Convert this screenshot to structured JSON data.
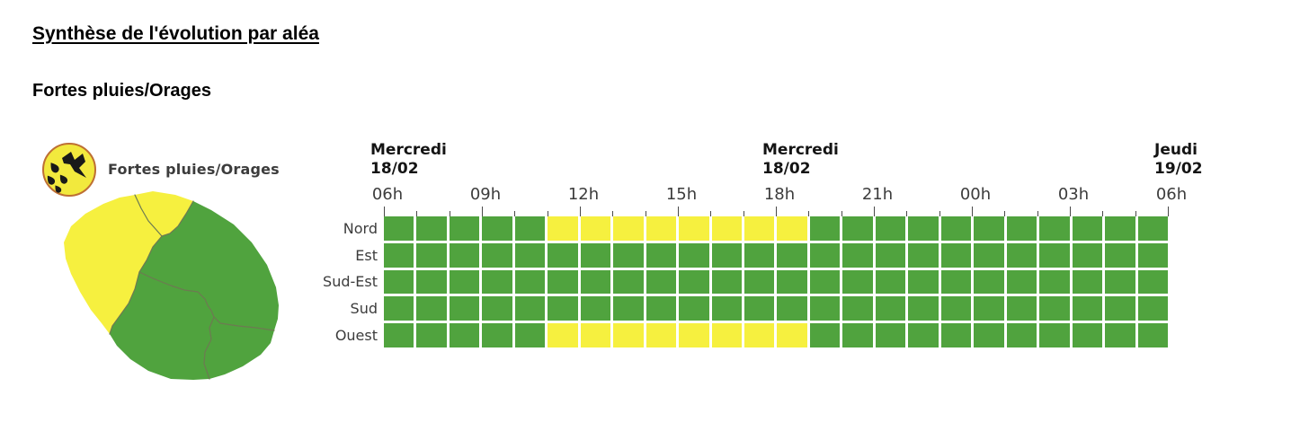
{
  "header": {
    "title": "Synthèse de l'évolution par aléa",
    "subtitle": "Fortes pluies/Orages"
  },
  "hazard": {
    "label": "Fortes pluies/Orages",
    "icon": "storm-icon",
    "icon_colors": {
      "fill": "#F2E93D",
      "outline": "#BE6F33",
      "glyph": "#191919"
    },
    "level_colors": {
      "g": "#50A33E",
      "y": "#F6F03F"
    }
  },
  "map": {
    "zones": [
      {
        "id": "Nord",
        "state": "y"
      },
      {
        "id": "Ouest",
        "state": "y"
      },
      {
        "id": "Est",
        "state": "g"
      },
      {
        "id": "Sud-Est",
        "state": "g"
      },
      {
        "id": "Sud",
        "state": "g"
      }
    ],
    "border_color": "#6d7a52"
  },
  "chart_data": {
    "type": "heatmap",
    "title": "Fortes pluies/Orages",
    "date_headers": [
      {
        "line1": "Mercredi",
        "line2": "18/02",
        "anchor_hour_index": 0
      },
      {
        "line1": "Mercredi",
        "line2": "18/02",
        "anchor_hour_index": 4
      },
      {
        "line1": "Jeudi",
        "line2": "19/02",
        "anchor_hour_index": 8
      }
    ],
    "hour_labels": [
      "06h",
      "09h",
      "12h",
      "15h",
      "18h",
      "21h",
      "00h",
      "03h",
      "06h"
    ],
    "hours_per_cell": 1,
    "n_cells": 24,
    "x_range": "Mercredi 18/02 06h → Jeudi 19/02 06h",
    "rows": [
      "Nord",
      "Est",
      "Sud-Est",
      "Sud",
      "Ouest"
    ],
    "states": {
      "g": "#50A33E",
      "y": "#F6F03F"
    },
    "yellow_interval": {
      "rows": [
        "Nord",
        "Ouest"
      ],
      "from": "11h",
      "to": "19h"
    },
    "cells": [
      [
        "g",
        "g",
        "g",
        "g",
        "g",
        "y",
        "y",
        "y",
        "y",
        "y",
        "y",
        "y",
        "y",
        "g",
        "g",
        "g",
        "g",
        "g",
        "g",
        "g",
        "g",
        "g",
        "g",
        "g"
      ],
      [
        "g",
        "g",
        "g",
        "g",
        "g",
        "g",
        "g",
        "g",
        "g",
        "g",
        "g",
        "g",
        "g",
        "g",
        "g",
        "g",
        "g",
        "g",
        "g",
        "g",
        "g",
        "g",
        "g",
        "g"
      ],
      [
        "g",
        "g",
        "g",
        "g",
        "g",
        "g",
        "g",
        "g",
        "g",
        "g",
        "g",
        "g",
        "g",
        "g",
        "g",
        "g",
        "g",
        "g",
        "g",
        "g",
        "g",
        "g",
        "g",
        "g"
      ],
      [
        "g",
        "g",
        "g",
        "g",
        "g",
        "g",
        "g",
        "g",
        "g",
        "g",
        "g",
        "g",
        "g",
        "g",
        "g",
        "g",
        "g",
        "g",
        "g",
        "g",
        "g",
        "g",
        "g",
        "g"
      ],
      [
        "g",
        "g",
        "g",
        "g",
        "g",
        "y",
        "y",
        "y",
        "y",
        "y",
        "y",
        "y",
        "y",
        "g",
        "g",
        "g",
        "g",
        "g",
        "g",
        "g",
        "g",
        "g",
        "g",
        "g"
      ]
    ]
  }
}
